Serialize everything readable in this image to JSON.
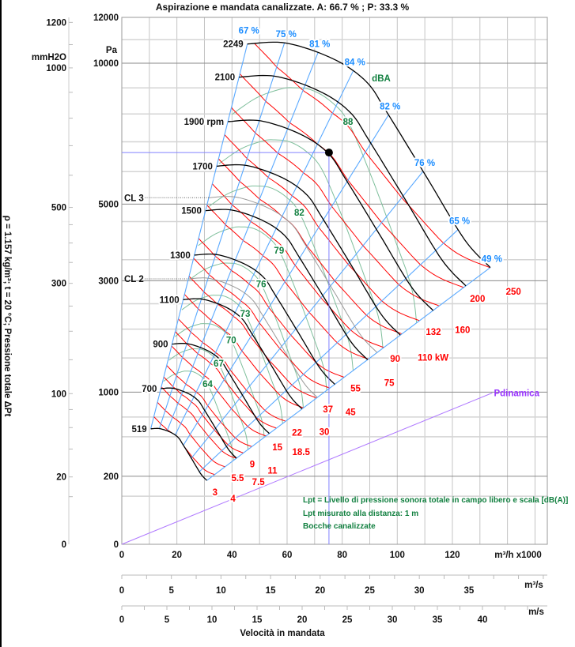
{
  "title": "Aspirazione e mandata canalizzate. A:  66.7 % ;  P:  33.3 %",
  "left_axis": {
    "label": "ρ = 1.157 kg/m³;   t = 20 °C;   Pressione totale ΔPt",
    "unit": "mmH2O",
    "ticks": [
      "1200",
      "1000",
      "500",
      "300",
      "100",
      "20",
      "0"
    ]
  },
  "pa_axis": {
    "unit": "Pa",
    "ticks": [
      "12000",
      "10000",
      "5000",
      "3000",
      "1000",
      "200",
      "0"
    ]
  },
  "x_axis": {
    "unit": "m³/h x1000",
    "ticks": [
      "0",
      "20",
      "40",
      "60",
      "80",
      "100",
      "120"
    ]
  },
  "x_axis_m3s": {
    "unit": "m³/s",
    "ticks": [
      "0",
      "5",
      "10",
      "15",
      "20",
      "25",
      "30",
      "35"
    ]
  },
  "x_axis_ms": {
    "unit": "m/s",
    "ticks": [
      "0",
      "5",
      "10",
      "15",
      "20",
      "25",
      "30",
      "35",
      "40"
    ],
    "title": "Velocità in mandata"
  },
  "notes": [
    "Lpt = Livello di pressione sonora totale in campo libero e scala [dB(A)]",
    "Lpt misurato alla distanza: 1 m",
    "Bocche canalizzate"
  ],
  "chart_data": {
    "type": "line",
    "title": "Aspirazione e mandata canalizzate. A:  66.7 % ;  P:  33.3 %",
    "xlabel": "m³/h x1000",
    "ylabel": "Pressione totale ΔPt",
    "xlim": [
      0,
      155
    ],
    "ylim": [
      0,
      12000
    ],
    "y_scale": "square-root",
    "grid": true,
    "reference_curve_rpm": 1900,
    "reference_curve": [
      [
        38.5,
        7718
      ],
      [
        50.5,
        7746
      ],
      [
        64.9,
        7263
      ],
      [
        74.9,
        6607
      ],
      [
        81.3,
        5755
      ],
      [
        93.6,
        4143
      ],
      [
        105.1,
        2865
      ],
      [
        113.0,
        2362
      ]
    ],
    "speed_curves": [
      {
        "rpm": 519,
        "label": "519"
      },
      {
        "rpm": 700,
        "label": "700"
      },
      {
        "rpm": 900,
        "label": "900"
      },
      {
        "rpm": 1100,
        "label": "1100"
      },
      {
        "rpm": 1300,
        "label": "1300"
      },
      {
        "rpm": 1500,
        "label": "1500"
      },
      {
        "rpm": 1700,
        "label": "1700"
      },
      {
        "rpm": 1900,
        "label": "1900 rpm"
      },
      {
        "rpm": 2100,
        "label": "2100"
      },
      {
        "rpm": 2249,
        "label": "2249"
      }
    ],
    "efficiency_lines": [
      {
        "label": "67 %",
        "q_at_1900rpm": 38.5
      },
      {
        "label": "75 %",
        "q_at_1900rpm": 49.9
      },
      {
        "label": "81 %",
        "q_at_1900rpm": 60.2
      },
      {
        "label": "84 %",
        "q_at_1900rpm": 71.0
      },
      {
        "label": "82 %",
        "q_at_1900rpm": 81.8
      },
      {
        "label": "76 %",
        "q_at_1900rpm": 92.4
      },
      {
        "label": "65 %",
        "q_at_1900rpm": 103.1
      },
      {
        "label": "49 %",
        "q_at_1900rpm": 113.0
      }
    ],
    "power_lines_kw": [
      {
        "kw": 3,
        "label": "3"
      },
      {
        "kw": 4,
        "label": "4"
      },
      {
        "kw": 5.5,
        "label": "5.5"
      },
      {
        "kw": 7.5,
        "label": "7.5"
      },
      {
        "kw": 9,
        "label": "9"
      },
      {
        "kw": 11,
        "label": "11"
      },
      {
        "kw": 15,
        "label": "15"
      },
      {
        "kw": 18.5,
        "label": "18.5"
      },
      {
        "kw": 22,
        "label": "22"
      },
      {
        "kw": 30,
        "label": "30"
      },
      {
        "kw": 37,
        "label": "37"
      },
      {
        "kw": 45,
        "label": "45"
      },
      {
        "kw": 55,
        "label": "55"
      },
      {
        "kw": 75,
        "label": "75"
      },
      {
        "kw": 90,
        "label": "90"
      },
      {
        "kw": 110,
        "label": "110 kW"
      },
      {
        "kw": 132,
        "label": "132"
      },
      {
        "kw": 160,
        "label": "160"
      },
      {
        "kw": 200,
        "label": "200"
      },
      {
        "kw": 250,
        "label": "250"
      }
    ],
    "sound_unit": "dBA",
    "sound_lines": [
      {
        "dba": 64,
        "label": "64"
      },
      {
        "dba": 67,
        "label": "67"
      },
      {
        "dba": 70,
        "label": "70"
      },
      {
        "dba": 73,
        "label": "73"
      },
      {
        "dba": 76,
        "label": "76"
      },
      {
        "dba": 79,
        "label": "79"
      },
      {
        "dba": 82,
        "label": "82"
      },
      {
        "dba": 85,
        "label": ""
      },
      {
        "dba": 88,
        "label": "88"
      }
    ],
    "class_limits": [
      {
        "label": "CL 3",
        "p_shutoff": 5190
      },
      {
        "label": "CL 2",
        "p_shutoff": 3044
      }
    ],
    "dynamic_pressure": {
      "label": "Pdinamica",
      "points": [
        [
          0,
          0
        ],
        [
          134.5,
          990
        ]
      ]
    },
    "operating_point": {
      "q": 75.2,
      "p": 6630
    },
    "colors": {
      "efficiency": "#5aa9ff",
      "power": "#ff0000",
      "sound": "#128040",
      "speed": "#000000",
      "dynamic": "#a64dff",
      "class_limit": "#999999"
    }
  }
}
